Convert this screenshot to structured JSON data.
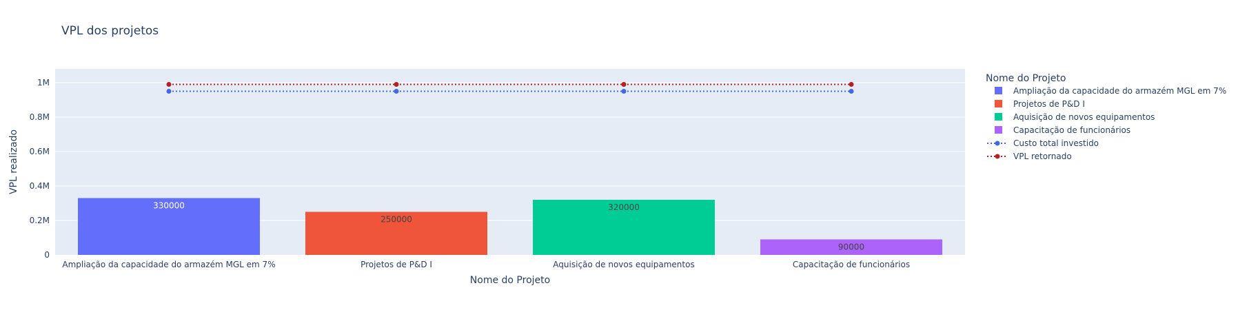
{
  "chart_data": {
    "type": "bar",
    "title": "VPL dos projetos",
    "xlabel": "Nome do Projeto",
    "ylabel": "VPL realizado",
    "ylim": [
      0,
      1080000
    ],
    "yticks": [
      0,
      200000,
      400000,
      600000,
      800000,
      1000000
    ],
    "ytick_labels": [
      "0",
      "0.2M",
      "0.4M",
      "0.6M",
      "0.8M",
      "1M"
    ],
    "categories": [
      "Ampliação da capacidade do armazém MGL em 7%",
      "Projetos de P&D I",
      "Aquisição de novos equipamentos",
      "Capacitação de funcionários"
    ],
    "bars": [
      {
        "name": "Ampliação da capacidade do armazém MGL em 7%",
        "value": 330000,
        "label": "330000",
        "color": "#636efa",
        "label_color": "#ffffff"
      },
      {
        "name": "Projetos de P&D I",
        "value": 250000,
        "label": "250000",
        "color": "#ef553b",
        "label_color": "#444444"
      },
      {
        "name": "Aquisição de novos equipamentos",
        "value": 320000,
        "label": "320000",
        "color": "#00cc96",
        "label_color": "#444444"
      },
      {
        "name": "Capacitação de funcionários",
        "value": 90000,
        "label": "90000",
        "color": "#ab63fa",
        "label_color": "#444444"
      }
    ],
    "lines": [
      {
        "name": "Custo total investido",
        "values": [
          950000,
          950000,
          950000,
          950000
        ],
        "color": "#4169e1",
        "dash": "dotted",
        "markers": true
      },
      {
        "name": "VPL retornado",
        "values": [
          990000,
          990000,
          990000,
          990000
        ],
        "color": "#b22222",
        "dash": "dotted",
        "markers": true
      }
    ],
    "legend_title": "Nome do Projeto",
    "legend_position": "right",
    "grid": true,
    "plot_background": "#e5ecf6"
  }
}
